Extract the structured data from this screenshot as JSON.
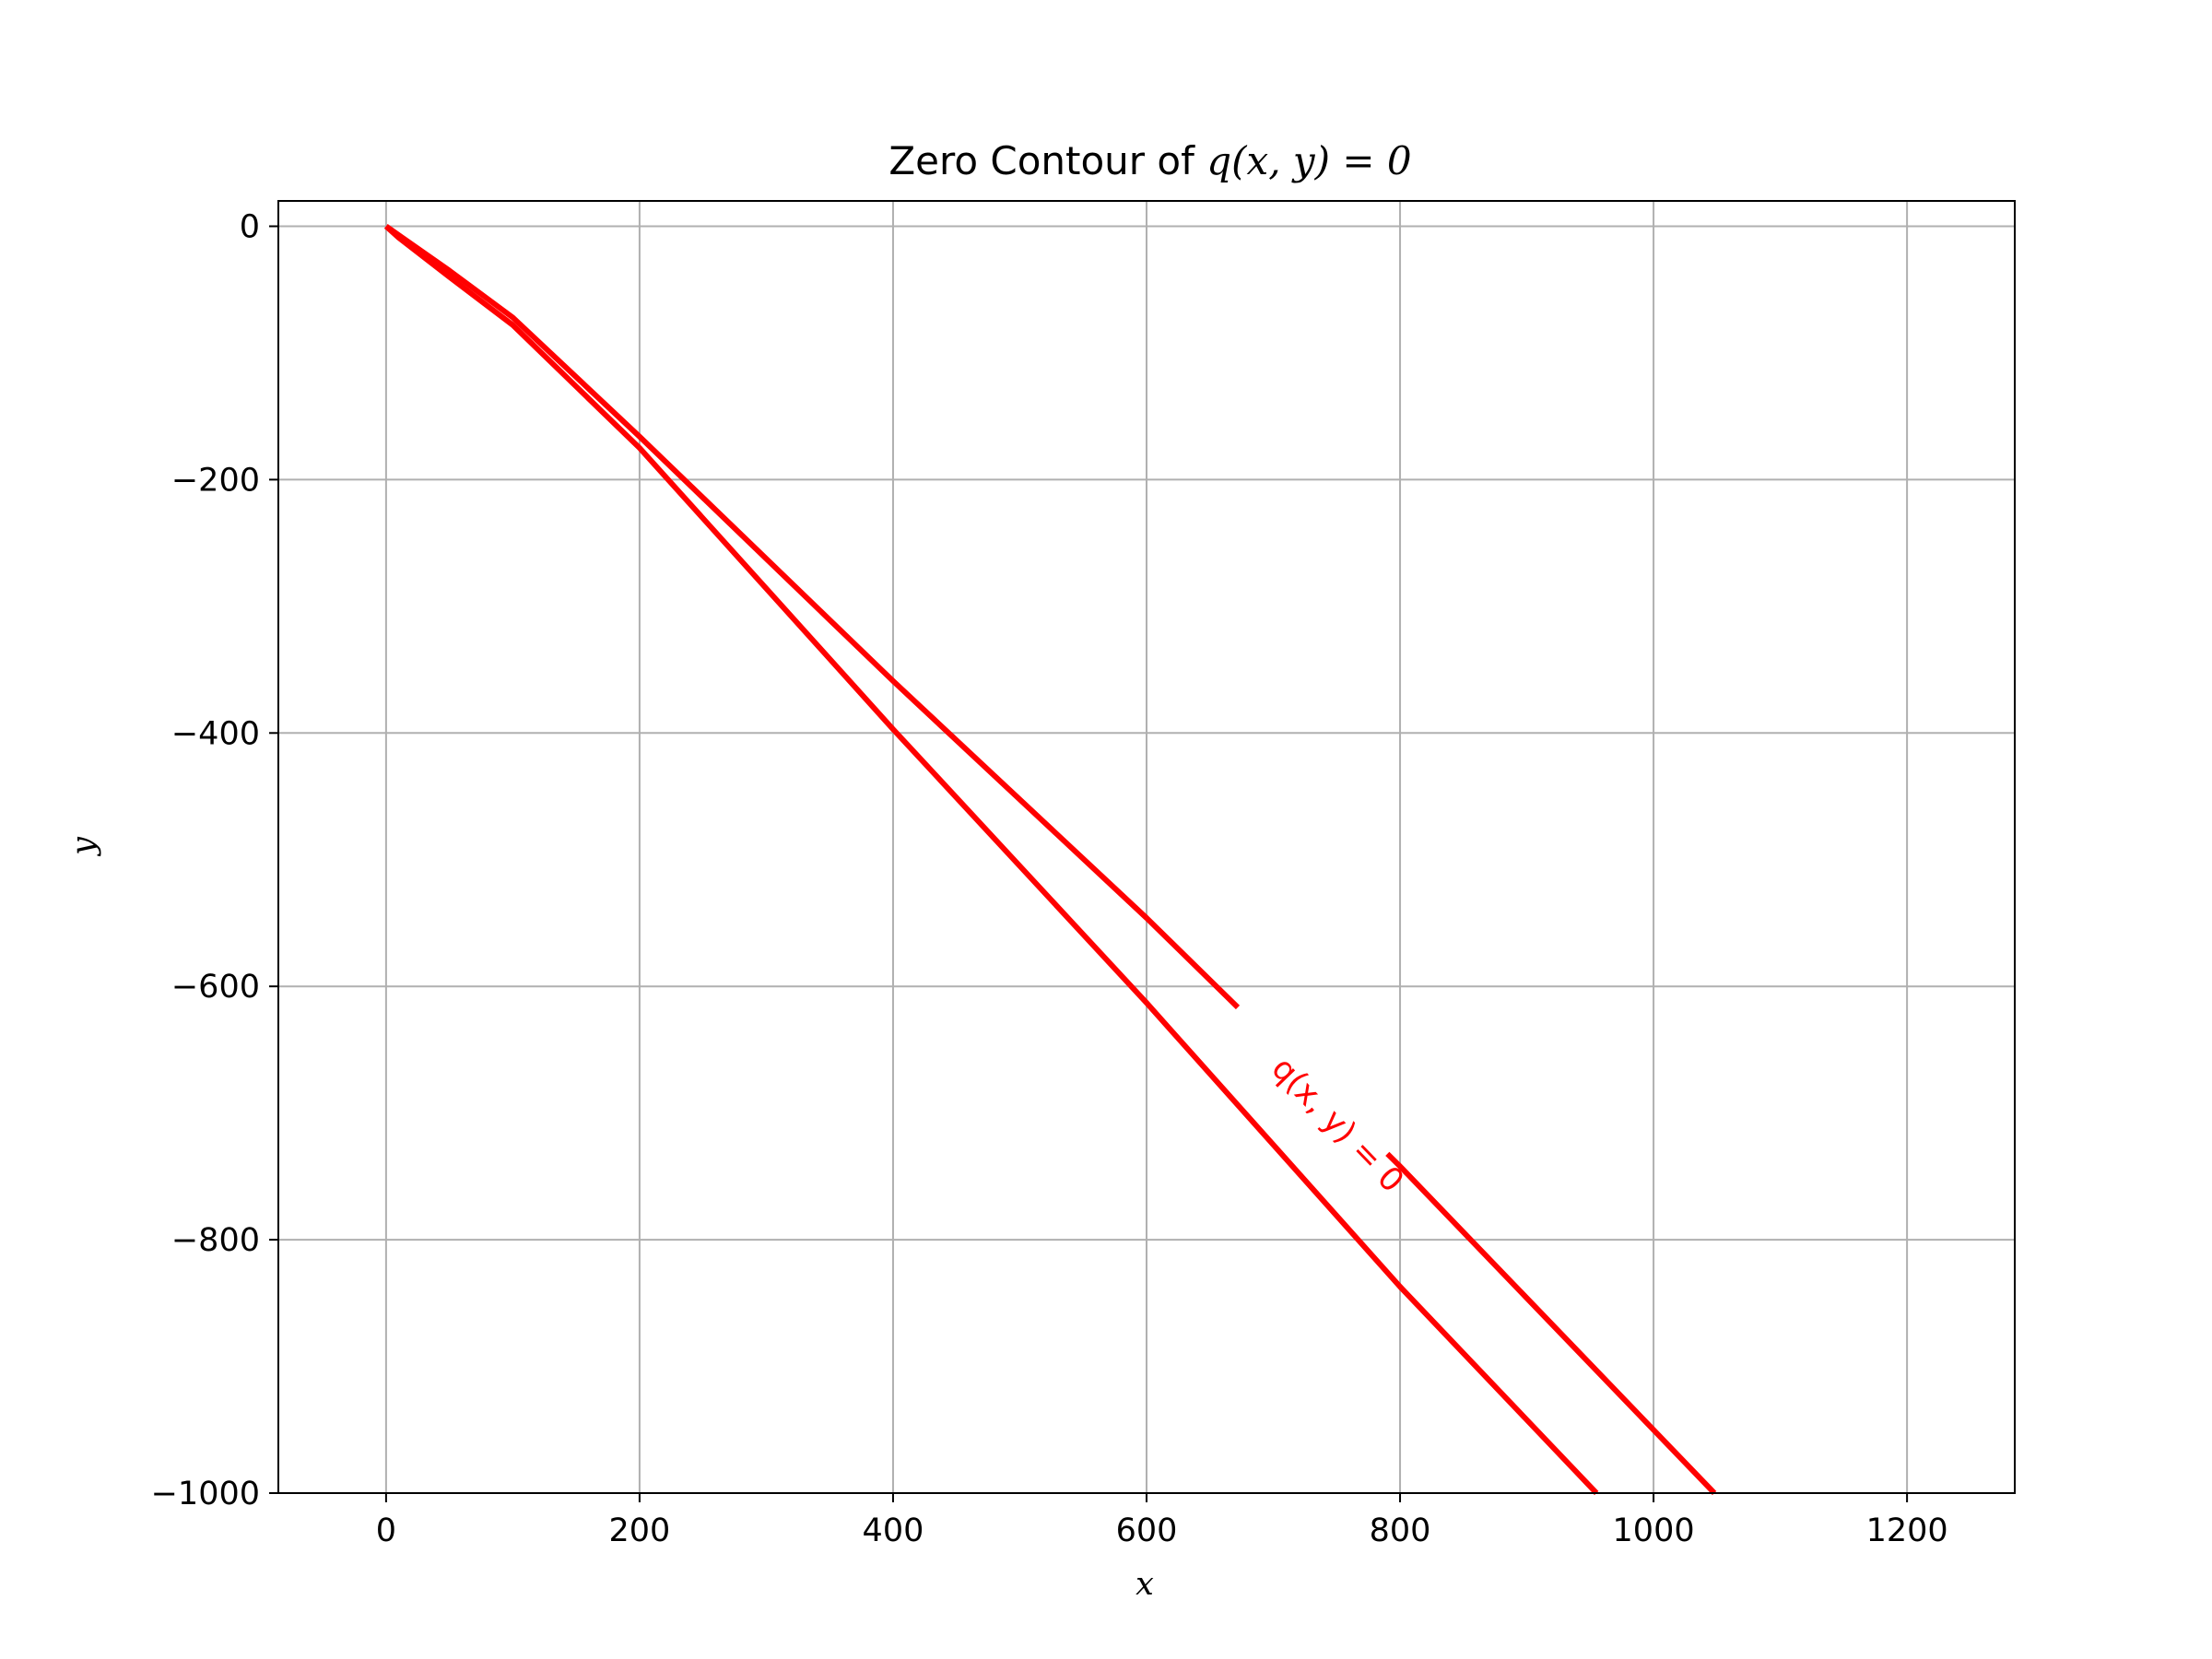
{
  "chart_data": {
    "type": "line",
    "title_text": "Zero Contour of ",
    "title_math": "q(x, y) = 0",
    "xlabel": "x",
    "ylabel": "y",
    "xlim": [
      -85,
      1285
    ],
    "ylim": [
      -1000,
      20
    ],
    "xticks": [
      0,
      200,
      400,
      600,
      800,
      1000,
      1200
    ],
    "yticks": [
      0,
      -200,
      -400,
      -600,
      -800,
      -1000
    ],
    "xtick_labels": [
      "0",
      "200",
      "400",
      "600",
      "800",
      "1000",
      "1200"
    ],
    "ytick_labels": [
      "0",
      "−200",
      "−400",
      "−600",
      "−800",
      "−1000"
    ],
    "grid": true,
    "series": [
      {
        "color": "#ff0000",
        "branches": [
          [
            [
              0,
              0
            ],
            [
              10,
              -9
            ],
            [
              50,
              -40
            ],
            [
              100,
              -78
            ],
            [
              200,
              -175
            ],
            [
              400,
              -397
            ],
            [
              600,
              -613
            ],
            [
              800,
              -837
            ],
            [
              955,
              -1000
            ]
          ],
          [
            [
              0,
              0
            ],
            [
              10,
              -7
            ],
            [
              50,
              -35
            ],
            [
              100,
              -72
            ],
            [
              200,
              -166
            ],
            [
              400,
              -359
            ],
            [
              600,
              -546
            ],
            [
              800,
              -742
            ],
            [
              1048,
              -1000
            ]
          ]
        ]
      }
    ],
    "contour_label": {
      "text": "q(x, y) = 0",
      "color": "#ff0000",
      "anchor": [
        750,
        -710
      ],
      "gap_x": [
        672,
        790
      ]
    }
  }
}
